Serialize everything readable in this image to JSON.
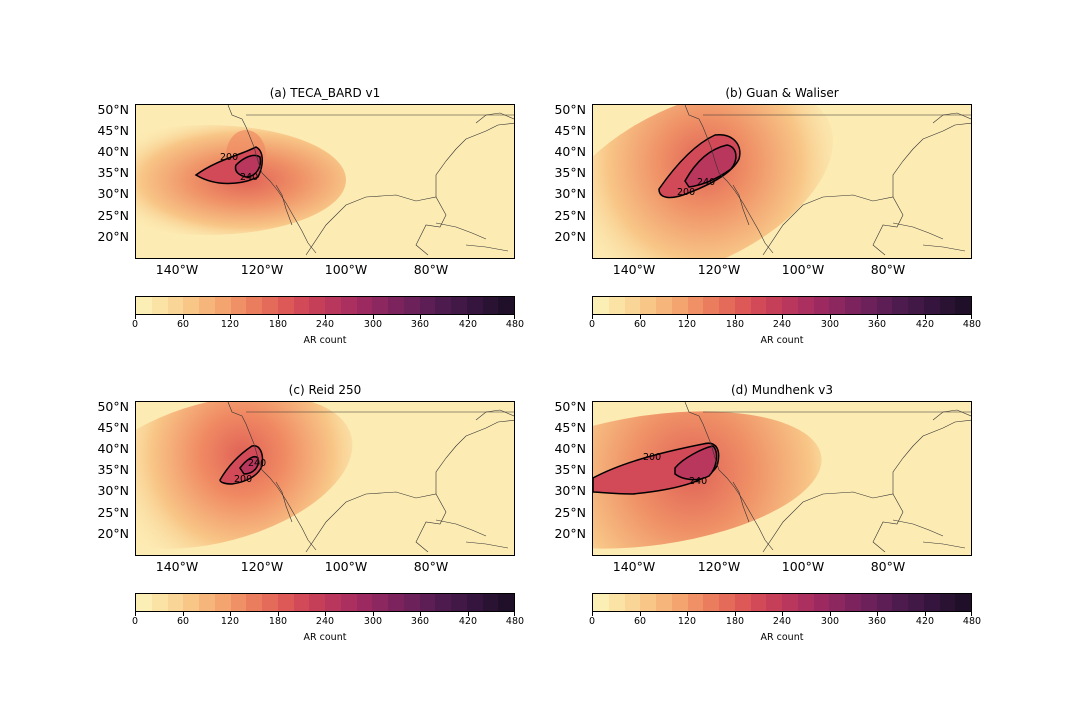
{
  "colorbar": {
    "label": "AR count",
    "ticks": [
      "0",
      "60",
      "120",
      "180",
      "240",
      "300",
      "360",
      "420",
      "480"
    ],
    "levels": 24,
    "colors": [
      "#fcefb5",
      "#fbe3a6",
      "#f9d597",
      "#f8c687",
      "#f6b57a",
      "#f3a46f",
      "#ef9066",
      "#eb7d5f",
      "#e46a59",
      "#dc5957",
      "#d24a57",
      "#c63f59",
      "#b9365c",
      "#ab2f5f",
      "#9c2a60",
      "#8c2760",
      "#7c235e",
      "#6c215a",
      "#5c1e55",
      "#4e1b4e",
      "#411846",
      "#35153d",
      "#2a1233",
      "#200f29"
    ]
  },
  "axes": {
    "y_ticks": [
      "50°N",
      "45°N",
      "40°N",
      "35°N",
      "30°N",
      "25°N",
      "20°N"
    ],
    "x_ticks": [
      "140°W",
      "120°W",
      "100°W",
      "80°W"
    ]
  },
  "panels": [
    {
      "title": "(a) TECA_BARD v1",
      "contour_labels": [
        "200",
        "240"
      ]
    },
    {
      "title": "(b) Guan & Waliser",
      "contour_labels": [
        "200",
        "240"
      ]
    },
    {
      "title": "(c) Reid 250",
      "contour_labels": [
        "200",
        "240"
      ]
    },
    {
      "title": "(d) Mundhenk v3",
      "contour_labels": [
        "200",
        "240"
      ]
    }
  ]
}
